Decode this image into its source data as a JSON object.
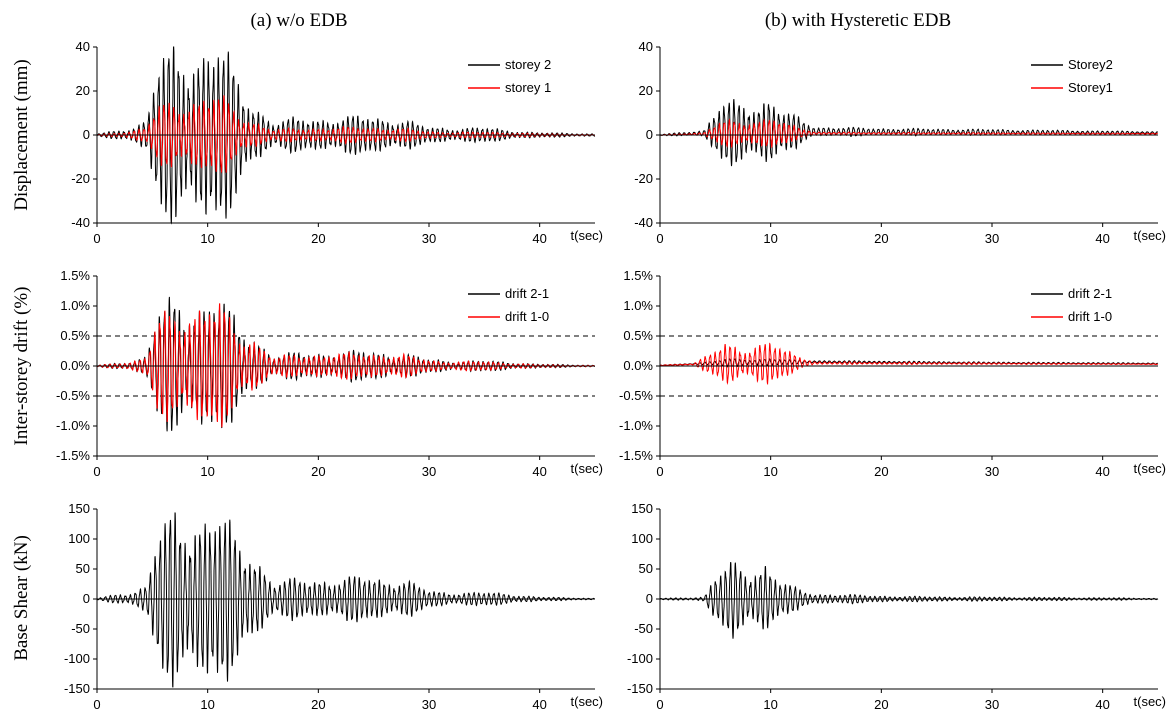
{
  "column_titles": [
    "(a) w/o EDB",
    "(b) with Hysteretic EDB"
  ],
  "row_labels": [
    "Displacement (mm)",
    "Inter-storey drift (%)",
    "Base Shear (kN)"
  ],
  "x_unit_label": "t(sec)",
  "colors": {
    "black_series": "#000000",
    "red_series": "#ff0000",
    "reference_lines": "#000000"
  },
  "chart_data": [
    {
      "type": "line",
      "panel": "a1",
      "x_ticks": [
        "0",
        "10",
        "20",
        "30",
        "40"
      ],
      "y_ticks": [
        "-40",
        "-20",
        "0",
        "20",
        "40"
      ],
      "xlim": [
        0,
        45
      ],
      "ylim": [
        -40,
        40
      ],
      "grid": false,
      "legend": "top-right",
      "series": [
        {
          "name": "storey 2",
          "color": "#000000",
          "envelope": [
            [
              0,
              0.5
            ],
            [
              2,
              2
            ],
            [
              3,
              3
            ],
            [
              4.5,
              6
            ],
            [
              5.5,
              30
            ],
            [
              7,
              36
            ],
            [
              9,
              35
            ],
            [
              11,
              39
            ],
            [
              13,
              20
            ],
            [
              14,
              14
            ],
            [
              16,
              5
            ],
            [
              18,
              7
            ],
            [
              20,
              7
            ],
            [
              22,
              7
            ],
            [
              24,
              8
            ],
            [
              26,
              7
            ],
            [
              28,
              6
            ],
            [
              30,
              3
            ],
            [
              32,
              3
            ],
            [
              35,
              3
            ],
            [
              37,
              2
            ],
            [
              40,
              1
            ],
            [
              45,
              0.5
            ]
          ],
          "period_s": 0.45
        },
        {
          "name": "storey 1",
          "color": "#ff0000",
          "envelope": [
            [
              0,
              0.2
            ],
            [
              2,
              1
            ],
            [
              3,
              1.5
            ],
            [
              4.5,
              3
            ],
            [
              5.5,
              12
            ],
            [
              7,
              15
            ],
            [
              9,
              14
            ],
            [
              11,
              17
            ],
            [
              13,
              9
            ],
            [
              14,
              6
            ],
            [
              16,
              2
            ],
            [
              18,
              3
            ],
            [
              20,
              3
            ],
            [
              22,
              3
            ],
            [
              24,
              3.5
            ],
            [
              26,
              3
            ],
            [
              28,
              2.5
            ],
            [
              30,
              1.5
            ],
            [
              32,
              1.2
            ],
            [
              35,
              1.2
            ],
            [
              37,
              1
            ],
            [
              40,
              0.5
            ],
            [
              45,
              0.2
            ]
          ],
          "period_s": 0.45
        }
      ]
    },
    {
      "type": "line",
      "panel": "a2",
      "x_ticks": [
        "0",
        "10",
        "20",
        "30",
        "40"
      ],
      "y_ticks": [
        "-1.5%",
        "-1.0%",
        "-0.5%",
        "0.0%",
        "0.5%",
        "1.0%",
        "1.5%"
      ],
      "xlim": [
        0,
        45
      ],
      "ylim": [
        -1.5,
        1.5
      ],
      "grid": false,
      "legend": "top-right",
      "reference_lines": [
        0.5,
        -0.5
      ],
      "series": [
        {
          "name": "drift 2-1",
          "color": "#000000",
          "envelope": [
            [
              0,
              0.01
            ],
            [
              2,
              0.05
            ],
            [
              3,
              0.07
            ],
            [
              4.5,
              0.15
            ],
            [
              5.5,
              0.85
            ],
            [
              7,
              1.0
            ],
            [
              9,
              0.95
            ],
            [
              11,
              1.08
            ],
            [
              13,
              0.55
            ],
            [
              14,
              0.5
            ],
            [
              16,
              0.15
            ],
            [
              18,
              0.2
            ],
            [
              20,
              0.2
            ],
            [
              22,
              0.2
            ],
            [
              24,
              0.23
            ],
            [
              26,
              0.2
            ],
            [
              28,
              0.18
            ],
            [
              30,
              0.1
            ],
            [
              32,
              0.08
            ],
            [
              35,
              0.08
            ],
            [
              37,
              0.06
            ],
            [
              40,
              0.03
            ],
            [
              45,
              0.01
            ]
          ],
          "period_s": 0.45
        },
        {
          "name": "drift 1-0",
          "color": "#ff0000",
          "envelope": [
            [
              0,
              0.01
            ],
            [
              2,
              0.05
            ],
            [
              3,
              0.06
            ],
            [
              4.5,
              0.12
            ],
            [
              5.5,
              0.75
            ],
            [
              7,
              0.9
            ],
            [
              9,
              0.85
            ],
            [
              11,
              0.95
            ],
            [
              13,
              0.5
            ],
            [
              14,
              0.45
            ],
            [
              16,
              0.12
            ],
            [
              18,
              0.18
            ],
            [
              20,
              0.18
            ],
            [
              22,
              0.18
            ],
            [
              24,
              0.2
            ],
            [
              26,
              0.18
            ],
            [
              28,
              0.16
            ],
            [
              30,
              0.09
            ],
            [
              32,
              0.07
            ],
            [
              35,
              0.07
            ],
            [
              37,
              0.05
            ],
            [
              40,
              0.02
            ],
            [
              45,
              0.01
            ]
          ],
          "period_s": 0.45
        }
      ]
    },
    {
      "type": "line",
      "panel": "a3",
      "x_ticks": [
        "0",
        "10",
        "20",
        "30",
        "40"
      ],
      "y_ticks": [
        "-150",
        "-100",
        "-50",
        "0",
        "50",
        "100",
        "150"
      ],
      "xlim": [
        0,
        45
      ],
      "ylim": [
        -150,
        150
      ],
      "grid": false,
      "legend": "none",
      "series": [
        {
          "color": "#000000",
          "envelope": [
            [
              0,
              1
            ],
            [
              2,
              8
            ],
            [
              3,
              10
            ],
            [
              4.5,
              20
            ],
            [
              5.5,
              100
            ],
            [
              7,
              130
            ],
            [
              9,
              125
            ],
            [
              11,
              135
            ],
            [
              13,
              80
            ],
            [
              14,
              75
            ],
            [
              16,
              25
            ],
            [
              18,
              30
            ],
            [
              20,
              30
            ],
            [
              22,
              30
            ],
            [
              24,
              35
            ],
            [
              26,
              30
            ],
            [
              28,
              28
            ],
            [
              30,
              12
            ],
            [
              32,
              10
            ],
            [
              35,
              10
            ],
            [
              37,
              8
            ],
            [
              40,
              3
            ],
            [
              45,
              1
            ]
          ],
          "period_s": 0.45
        }
      ]
    },
    {
      "type": "line",
      "panel": "b1",
      "x_ticks": [
        "0",
        "10",
        "20",
        "30",
        "40"
      ],
      "y_ticks": [
        "-40",
        "-20",
        "0",
        "20",
        "40"
      ],
      "xlim": [
        0,
        45
      ],
      "ylim": [
        -40,
        40
      ],
      "grid": false,
      "legend": "top-right",
      "series": [
        {
          "name": "Storey2",
          "color": "#000000",
          "envelope": [
            [
              0,
              0.2
            ],
            [
              2,
              0.8
            ],
            [
              4,
              1.2
            ],
            [
              5.5,
              12
            ],
            [
              7,
              13
            ],
            [
              9,
              12
            ],
            [
              10,
              15
            ],
            [
              11,
              8
            ],
            [
              12.5,
              6
            ],
            [
              14,
              2
            ],
            [
              20,
              1.5
            ],
            [
              30,
              1.2
            ],
            [
              45,
              0.5
            ]
          ],
          "offset": [
            [
              0,
              0
            ],
            [
              5,
              1
            ],
            [
              12,
              1.5
            ],
            [
              45,
              1
            ]
          ],
          "period_s": 0.45
        },
        {
          "name": "Storey1",
          "color": "#ff0000",
          "envelope": [
            [
              0,
              0.1
            ],
            [
              2,
              0.3
            ],
            [
              4,
              0.5
            ],
            [
              5.5,
              5
            ],
            [
              7,
              6
            ],
            [
              9,
              5
            ],
            [
              10,
              7
            ],
            [
              11,
              4
            ],
            [
              12.5,
              3
            ],
            [
              14,
              0.5
            ],
            [
              20,
              0.4
            ],
            [
              45,
              0.2
            ]
          ],
          "offset": [
            [
              0,
              0
            ],
            [
              5,
              0.6
            ],
            [
              12,
              0.8
            ],
            [
              45,
              0.6
            ]
          ],
          "period_s": 0.45
        }
      ]
    },
    {
      "type": "line",
      "panel": "b2",
      "x_ticks": [
        "0",
        "10",
        "20",
        "30",
        "40"
      ],
      "y_ticks": [
        "-1.5%",
        "-1.0%",
        "-0.5%",
        "0.0%",
        "0.5%",
        "1.0%",
        "1.5%"
      ],
      "xlim": [
        0,
        45
      ],
      "ylim": [
        -1.5,
        1.5
      ],
      "grid": false,
      "legend": "top-right",
      "reference_lines": [
        0.5,
        -0.5
      ],
      "series": [
        {
          "name": "drift 2-1",
          "color": "#000000",
          "envelope": [
            [
              0,
              0.005
            ],
            [
              3,
              0.01
            ],
            [
              5,
              0.03
            ],
            [
              6,
              0.06
            ],
            [
              8,
              0.05
            ],
            [
              10,
              0.06
            ],
            [
              12,
              0.03
            ],
            [
              14,
              0.02
            ],
            [
              45,
              0.01
            ]
          ],
          "offset": [
            [
              0,
              0.01
            ],
            [
              5,
              0.05
            ],
            [
              14,
              0.07
            ],
            [
              30,
              0.05
            ],
            [
              45,
              0.04
            ]
          ],
          "period_s": 0.45
        },
        {
          "name": "drift 1-0",
          "color": "#ff0000",
          "envelope": [
            [
              0,
              0.005
            ],
            [
              3,
              0.01
            ],
            [
              5,
              0.2
            ],
            [
              6,
              0.3
            ],
            [
              8,
              0.25
            ],
            [
              10,
              0.35
            ],
            [
              11,
              0.2
            ],
            [
              12.5,
              0.12
            ],
            [
              14,
              0.02
            ],
            [
              45,
              0.005
            ]
          ],
          "offset": [
            [
              0,
              0.01
            ],
            [
              5,
              0.04
            ],
            [
              14,
              0.05
            ],
            [
              30,
              0.04
            ],
            [
              45,
              0.03
            ]
          ],
          "period_s": 0.45
        }
      ]
    },
    {
      "type": "line",
      "panel": "b3",
      "x_ticks": [
        "0",
        "10",
        "20",
        "30",
        "40"
      ],
      "y_ticks": [
        "-150",
        "-100",
        "-50",
        "0",
        "50",
        "100",
        "150"
      ],
      "xlim": [
        0,
        45
      ],
      "ylim": [
        -150,
        150
      ],
      "grid": false,
      "legend": "none",
      "series": [
        {
          "color": "#000000",
          "envelope": [
            [
              0,
              1
            ],
            [
              2,
              2
            ],
            [
              4,
              3
            ],
            [
              5,
              35
            ],
            [
              6.5,
              55
            ],
            [
              8,
              45
            ],
            [
              9.5,
              55
            ],
            [
              11,
              25
            ],
            [
              12.5,
              15
            ],
            [
              14,
              8
            ],
            [
              18,
              6
            ],
            [
              22,
              4
            ],
            [
              30,
              3
            ],
            [
              40,
              2
            ],
            [
              45,
              1
            ]
          ],
          "period_s": 0.45
        }
      ]
    }
  ]
}
